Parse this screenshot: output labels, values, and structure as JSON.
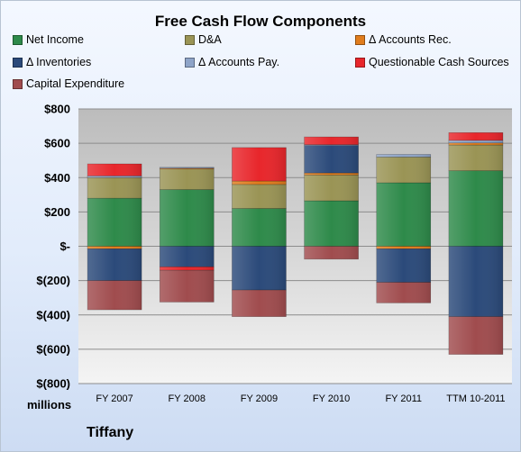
{
  "chart_data": {
    "type": "bar",
    "stacked": true,
    "title": "Free Cash Flow Components",
    "categories": [
      "FY 2007",
      "FY 2008",
      "FY 2009",
      "FY 2010",
      "FY 2011",
      "TTM 10-2011"
    ],
    "ylim": [
      -800,
      800
    ],
    "yticks": [
      800,
      600,
      400,
      200,
      0,
      -200,
      -400,
      -600,
      -800
    ],
    "ytick_labels": [
      "$800",
      "$600",
      "$400",
      "$200",
      "$-",
      "$(200)",
      "$(400)",
      "$(600)",
      "$(800)"
    ],
    "unit_label": "millions",
    "grid": true,
    "legend_position": "top",
    "series": [
      {
        "name": "Net Income",
        "color": "#2e8a4a",
        "values": [
          280,
          330,
          220,
          265,
          370,
          440
        ]
      },
      {
        "name": "D&A",
        "color": "#9a9455",
        "values": [
          120,
          120,
          140,
          150,
          150,
          150
        ]
      },
      {
        "name": "Δ Accounts Rec.",
        "color": "#e07c1c",
        "values": [
          -15,
          5,
          20,
          12,
          -15,
          12
        ]
      },
      {
        "name": "Δ Inventories",
        "color": "#2b4a7a",
        "values": [
          -185,
          -120,
          -255,
          160,
          -195,
          -410
        ]
      },
      {
        "name": "Δ Accounts Pay.",
        "color": "#8ea4c8",
        "values": [
          10,
          5,
          0,
          5,
          15,
          15
        ]
      },
      {
        "name": "Questionable Cash Sources",
        "color": "#e8262b",
        "values": [
          70,
          -20,
          195,
          45,
          0,
          45
        ]
      },
      {
        "name": "Capital Expenditure",
        "color": "#a04c4e",
        "values": [
          -170,
          -185,
          -155,
          -75,
          -120,
          -220
        ]
      }
    ]
  },
  "footer": {
    "company": "Tiffany"
  }
}
